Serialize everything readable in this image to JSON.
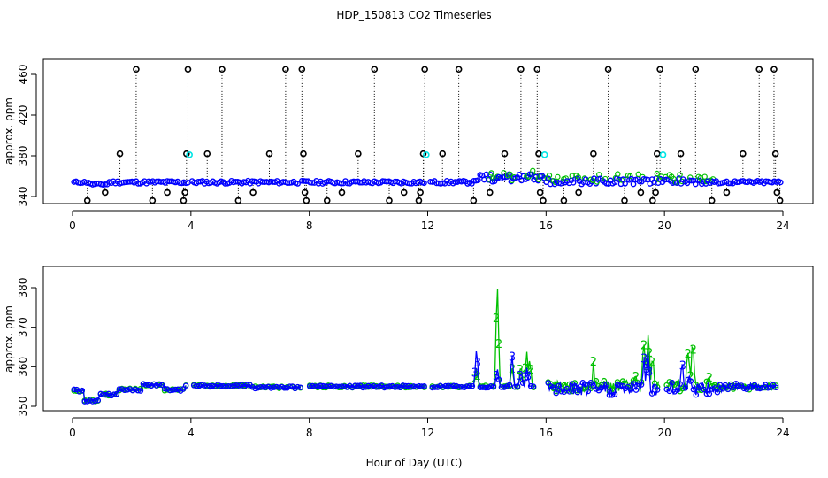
{
  "title": "HDP_150813  CO2 Timeseries",
  "xlabel": "Hour of Day (UTC)",
  "colors": {
    "ch1": "#000000",
    "ch1_cyan": "#00e5e5",
    "ch2": "#00c000",
    "ch3": "#0000ff",
    "axis": "#000000"
  },
  "chart_data": [
    {
      "type": "scatter",
      "ylabel": "approx. ppm",
      "xlim": [
        0,
        24
      ],
      "ylim": [
        333,
        468
      ],
      "xticks": [
        0,
        4,
        8,
        12,
        16,
        20,
        24
      ],
      "yticks": [
        340,
        380,
        420,
        460
      ],
      "baseline_ppm": 354,
      "series": [
        {
          "name": "black outliers (dotted stems to baseline)",
          "marker": "circle",
          "points": [
            [
              0.5,
              336
            ],
            [
              1.1,
              344
            ],
            [
              1.6,
              382
            ],
            [
              2.15,
              465
            ],
            [
              2.7,
              336
            ],
            [
              3.2,
              344
            ],
            [
              3.75,
              336
            ],
            [
              3.8,
              344
            ],
            [
              3.85,
              382
            ],
            [
              3.9,
              465
            ],
            [
              4.55,
              382
            ],
            [
              5.05,
              465
            ],
            [
              5.6,
              336
            ],
            [
              6.1,
              344
            ],
            [
              6.65,
              382
            ],
            [
              7.2,
              465
            ],
            [
              7.75,
              465
            ],
            [
              7.8,
              382
            ],
            [
              7.85,
              344
            ],
            [
              7.9,
              336
            ],
            [
              8.6,
              336
            ],
            [
              9.1,
              344
            ],
            [
              9.65,
              382
            ],
            [
              10.2,
              465
            ],
            [
              10.7,
              336
            ],
            [
              11.2,
              344
            ],
            [
              11.7,
              336
            ],
            [
              11.75,
              344
            ],
            [
              11.85,
              382
            ],
            [
              11.9,
              465
            ],
            [
              12.5,
              382
            ],
            [
              13.05,
              465
            ],
            [
              13.55,
              336
            ],
            [
              14.1,
              344
            ],
            [
              14.6,
              382
            ],
            [
              15.15,
              465
            ],
            [
              15.7,
              465
            ],
            [
              15.75,
              382
            ],
            [
              15.8,
              344
            ],
            [
              15.9,
              336
            ],
            [
              16.6,
              336
            ],
            [
              17.1,
              344
            ],
            [
              17.6,
              382
            ],
            [
              18.1,
              465
            ],
            [
              18.65,
              336
            ],
            [
              19.2,
              344
            ],
            [
              19.6,
              336
            ],
            [
              19.7,
              344
            ],
            [
              19.75,
              382
            ],
            [
              19.85,
              465
            ],
            [
              20.55,
              382
            ],
            [
              21.05,
              465
            ],
            [
              21.6,
              336
            ],
            [
              22.1,
              344
            ],
            [
              22.65,
              382
            ],
            [
              23.2,
              465
            ],
            [
              23.7,
              465
            ],
            [
              23.75,
              382
            ],
            [
              23.8,
              344
            ],
            [
              23.9,
              336
            ]
          ]
        },
        {
          "name": "cyan points",
          "marker": "circle",
          "points": [
            [
              3.95,
              381
            ],
            [
              11.95,
              381
            ],
            [
              15.95,
              381
            ],
            [
              19.95,
              381
            ]
          ]
        }
      ]
    },
    {
      "type": "line",
      "ylabel": "approx. ppm",
      "xlim": [
        0,
        24
      ],
      "ylim": [
        349,
        384
      ],
      "xticks": [
        0,
        4,
        8,
        12,
        16,
        20,
        24
      ],
      "yticks": [
        350,
        360,
        370,
        380
      ],
      "series": [
        {
          "name": "2",
          "label_glyph": "2"
        },
        {
          "name": "3",
          "label_glyph": "3"
        }
      ]
    }
  ]
}
